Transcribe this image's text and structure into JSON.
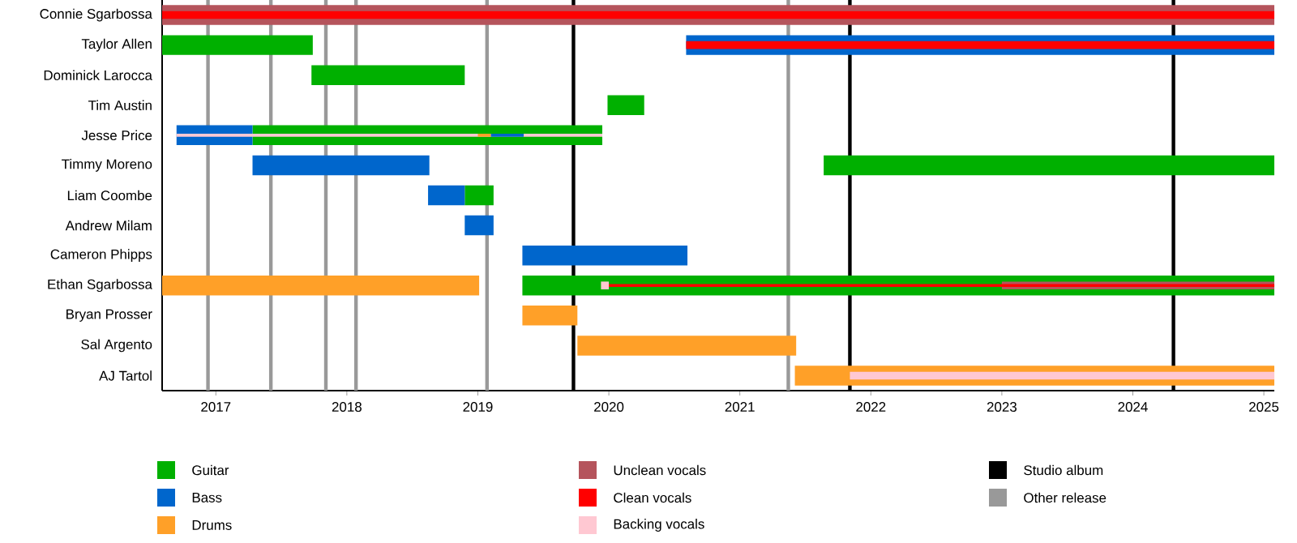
{
  "chart_data": {
    "type": "bar",
    "orientation": "horizontal",
    "legend": "bottom",
    "categories": [
      "Connie Sgarbossa",
      "Taylor Allen",
      "Dominick Larocca",
      "Tim Austin",
      "Jesse Price",
      "Timmy Moreno",
      "Liam Coombe",
      "Andrew Milam",
      "Cameron Phipps",
      "Ethan Sgarbossa",
      "Bryan Prosser",
      "Sal Argento",
      "AJ Tartol"
    ],
    "xlim": [
      2016.59,
      2025.08
    ],
    "xticks": [
      2017,
      2018,
      2019,
      2020,
      2021,
      2022,
      2023,
      2024,
      2025
    ],
    "series": [
      {
        "name": "Guitar",
        "color": "#00b000",
        "base": [
          null,
          2016.59,
          2017.73,
          2019.99,
          2017.28,
          2021.64,
          2018.9,
          null,
          null,
          2019.34,
          null,
          null,
          null
        ],
        "values": [
          null,
          1.15,
          1.17,
          0.28,
          2.67,
          3.44,
          0.22,
          null,
          null,
          5.74,
          null,
          null,
          null
        ]
      },
      {
        "name": "Bass",
        "color": "#0066cc",
        "base": [
          null,
          2020.59,
          null,
          null,
          2016.7,
          2017.28,
          2018.62,
          2018.9,
          2019.34,
          null,
          null,
          null,
          null
        ],
        "values": [
          null,
          4.49,
          null,
          null,
          0.58,
          1.35,
          0.28,
          0.22,
          1.26,
          null,
          null,
          null,
          null
        ]
      },
      {
        "name": "Drums",
        "color": "#ffa028",
        "base": [
          null,
          null,
          null,
          null,
          null,
          null,
          null,
          null,
          null,
          2016.59,
          2019.34,
          2019.76,
          2021.42
        ],
        "values": [
          null,
          null,
          null,
          null,
          null,
          null,
          null,
          null,
          null,
          2.42,
          0.42,
          1.67,
          3.66
        ]
      },
      {
        "name": "Unclean vocals",
        "color": "#b5545c",
        "base": [
          2016.59,
          null,
          null,
          null,
          null,
          null,
          null,
          null,
          null,
          2023.0,
          null,
          null,
          null
        ],
        "values": [
          8.49,
          null,
          null,
          null,
          null,
          null,
          null,
          null,
          null,
          2.08,
          null,
          null,
          null
        ]
      },
      {
        "name": "Clean vocals",
        "color": "#ff0000",
        "base": [
          2016.59,
          2020.59,
          null,
          null,
          null,
          null,
          null,
          null,
          null,
          2020.0,
          null,
          null,
          null
        ],
        "values": [
          8.49,
          4.49,
          null,
          null,
          null,
          null,
          null,
          null,
          null,
          5.08,
          null,
          null,
          null
        ]
      },
      {
        "name": "Backing vocals",
        "color": "#ffc8d2",
        "base": [
          null,
          null,
          null,
          null,
          2016.7,
          null,
          null,
          null,
          null,
          2019.94,
          null,
          null,
          2021.84
        ],
        "values": [
          null,
          null,
          null,
          null,
          3.25,
          null,
          null,
          null,
          null,
          0.06,
          null,
          null,
          3.24
        ]
      },
      {
        "color": "#ffa028",
        "base": [
          null,
          null,
          null,
          null,
          2019.0,
          null,
          null,
          null,
          null,
          null,
          null,
          null,
          null
        ],
        "values": [
          null,
          null,
          null,
          null,
          0.1,
          null,
          null,
          null,
          null,
          null,
          null,
          null,
          null
        ]
      },
      {
        "color": "#0066cc",
        "base": [
          null,
          null,
          null,
          null,
          2019.1,
          null,
          null,
          null,
          null,
          null,
          null,
          null,
          null
        ],
        "values": [
          null,
          null,
          null,
          null,
          0.25,
          null,
          null,
          null,
          null,
          null,
          null,
          null,
          null
        ]
      }
    ],
    "ref_lines": [
      {
        "axis": "x",
        "value": 2019.73,
        "color": "#000000",
        "label": "Studio album"
      },
      {
        "axis": "x",
        "value": 2021.84,
        "color": "#000000"
      },
      {
        "axis": "x",
        "value": 2024.31,
        "color": "#000000"
      },
      {
        "axis": "x",
        "value": 2016.94,
        "color": "#999999",
        "label": "Other release"
      },
      {
        "axis": "x",
        "value": 2017.42,
        "color": "#999999"
      },
      {
        "axis": "x",
        "value": 2017.84,
        "color": "#999999"
      },
      {
        "axis": "x",
        "value": 2018.07,
        "color": "#999999"
      },
      {
        "axis": "x",
        "value": 2019.07,
        "color": "#999999"
      },
      {
        "axis": "x",
        "value": 2021.37,
        "color": "#999999"
      }
    ]
  }
}
